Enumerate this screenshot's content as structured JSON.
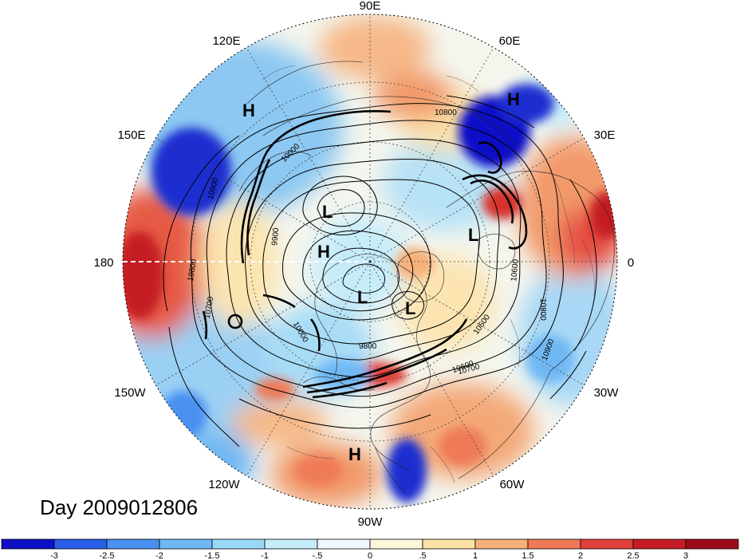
{
  "map": {
    "projection": "north-polar-stereographic",
    "longitude_labels": [
      "90E",
      "60E",
      "30E",
      "0",
      "30W",
      "60W",
      "90W",
      "120W",
      "150W",
      "180",
      "150E",
      "120E"
    ],
    "contour_labels": [
      "10800",
      "10900",
      "10800",
      "10700",
      "10600",
      "9900",
      "9800",
      "10000",
      "10500",
      "10600",
      "10800",
      "10700",
      "10900",
      "10000"
    ],
    "pressure_systems": [
      "H",
      "H",
      "L",
      "H",
      "L",
      "L",
      "L",
      "H"
    ],
    "day_label": "Day 2009012806"
  },
  "colorbar": {
    "tick_labels": [
      "-3",
      "-2.5",
      "-2",
      "-1.5",
      "-1",
      "-.5",
      "0",
      ".5",
      "1",
      "1.5",
      "2",
      "2.5",
      "3"
    ],
    "colors": [
      "#1010c8",
      "#2a5ee8",
      "#4a90f0",
      "#6fb8f4",
      "#9ad8f8",
      "#c6ecfa",
      "#eef9fd",
      "#fdf7dc",
      "#fbe0a8",
      "#f7b07a",
      "#ef7a58",
      "#e04038",
      "#c41c24",
      "#9c0c18"
    ]
  },
  "colors": {
    "neg_strong": "#1a2fd0",
    "neg_mid": "#4a90f0",
    "neg_weak": "#a8dcf6",
    "neutral": "#f4f6ee",
    "pos_weak": "#fbe4b0",
    "pos_mid": "#f29a6a",
    "pos_strong": "#d8302c",
    "contour": "#000000",
    "dateline": "#ffffff"
  }
}
